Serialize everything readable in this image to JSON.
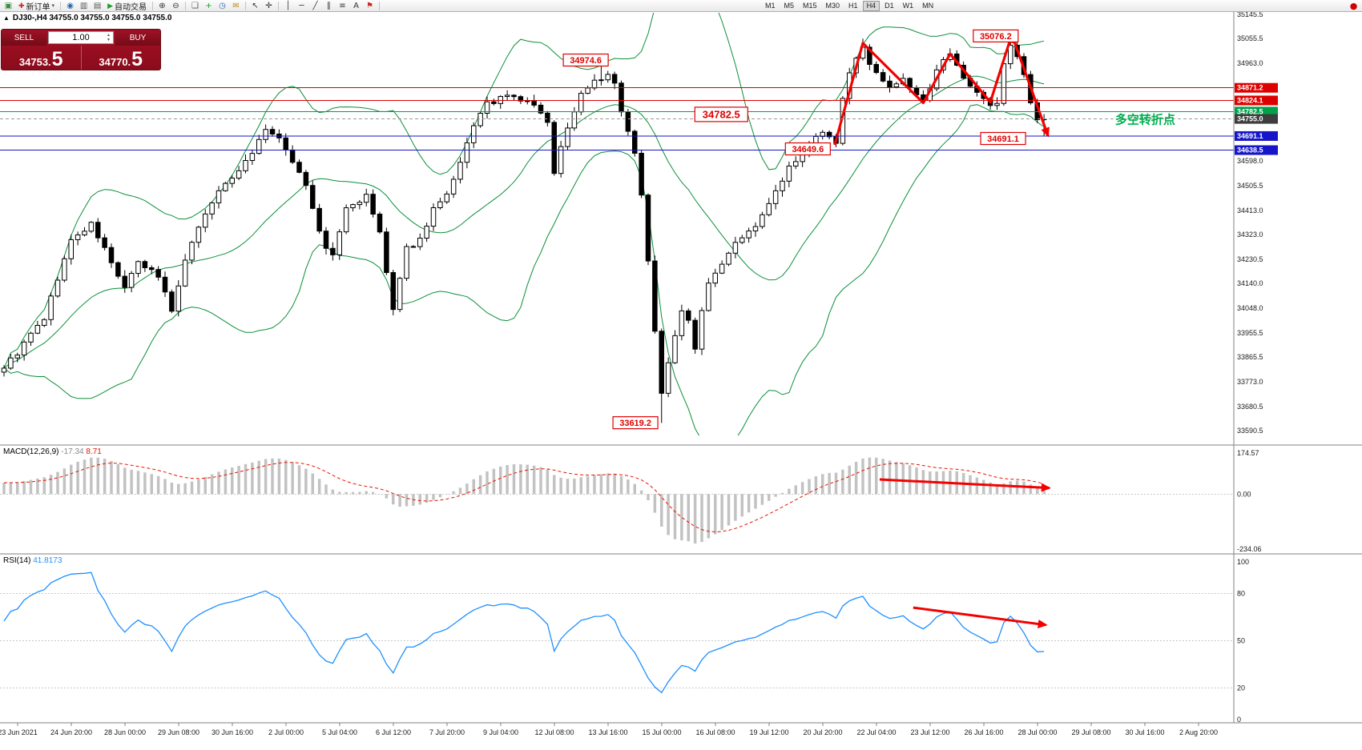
{
  "toolbar": {
    "items": [
      {
        "t": "icon",
        "name": "terminal-icon",
        "g": "▣",
        "c": "#3d8b40"
      },
      {
        "t": "btn",
        "name": "new-order-button",
        "g": "✚",
        "gc": "#cc2222",
        "label": "新订单",
        "caret": true
      },
      {
        "t": "sep"
      },
      {
        "t": "icon",
        "name": "compass-icon",
        "g": "◉",
        "c": "#2b6cb0"
      },
      {
        "t": "icon",
        "name": "bar-chart-icon",
        "g": "▥",
        "c": "#555555"
      },
      {
        "t": "icon",
        "name": "candlestick-chart-icon",
        "g": "▤",
        "c": "#555555"
      },
      {
        "t": "btn",
        "name": "autotrading-button",
        "g": "▶",
        "gc": "#18a32a",
        "label": "自动交易",
        "caret": false
      },
      {
        "t": "sep"
      },
      {
        "t": "icon",
        "name": "zoom-in-icon",
        "g": "⊕",
        "c": "#333333"
      },
      {
        "t": "icon",
        "name": "zoom-out-icon",
        "g": "⊖",
        "c": "#333333"
      },
      {
        "t": "sep"
      },
      {
        "t": "icon",
        "name": "tile-windows-icon",
        "g": "❏",
        "c": "#555555"
      },
      {
        "t": "icon",
        "name": "new-chart-icon",
        "g": "+",
        "c": "#18a32a"
      },
      {
        "t": "icon",
        "name": "clock-icon",
        "g": "◷",
        "c": "#2b6cb0"
      },
      {
        "t": "icon",
        "name": "mail-icon",
        "g": "✉",
        "c": "#b8901a"
      },
      {
        "t": "sep"
      },
      {
        "t": "icon",
        "name": "cursor-icon",
        "g": "↖",
        "c": "#333333"
      },
      {
        "t": "icon",
        "name": "crosshair-icon",
        "g": "✛",
        "c": "#333333"
      },
      {
        "t": "sep"
      },
      {
        "t": "icon",
        "name": "vertical-line-icon",
        "g": "│",
        "c": "#333333"
      },
      {
        "t": "icon",
        "name": "horizontal-line-icon",
        "g": "─",
        "c": "#333333"
      },
      {
        "t": "icon",
        "name": "trendline-icon",
        "g": "╱",
        "c": "#333333"
      },
      {
        "t": "icon",
        "name": "channel-icon",
        "g": "∥",
        "c": "#333333"
      },
      {
        "t": "icon",
        "name": "fibonacci-icon",
        "g": "≡",
        "c": "#333333"
      },
      {
        "t": "icon",
        "name": "text-tool-icon",
        "g": "A",
        "c": "#333333"
      },
      {
        "t": "icon",
        "name": "shapes-icon",
        "g": "⚑",
        "c": "#cc2222"
      },
      {
        "t": "sep"
      }
    ],
    "timeframes": [
      "M1",
      "M5",
      "M15",
      "M30",
      "H1",
      "H4",
      "D1",
      "W1",
      "MN"
    ],
    "active_timeframe": "H4",
    "record_icon": {
      "name": "record-icon",
      "g": "●",
      "c": "#d40000"
    }
  },
  "trade_panel": {
    "sell_label": "SELL",
    "buy_label": "BUY",
    "volume": "1.00",
    "sell_price_main": "34753.",
    "sell_price_big": "5",
    "buy_price_main": "34770.",
    "buy_price_big": "5"
  },
  "chart_data": {
    "type": "candlestick",
    "symbol": "DJ30-",
    "timeframe": "H4",
    "header_line": "DJ30-,H4  34755.0 34755.0 34755.0 34755.0",
    "bars": 156,
    "price_axis": {
      "max": 35145.5,
      "min": 33590.5,
      "plain_labels": [
        35145.5,
        35055.5,
        34963.0,
        34598.0,
        34505.5,
        34413.0,
        34323.0,
        34230.5,
        34140.0,
        34048.0,
        33955.5,
        33865.5,
        33773.0,
        33680.5,
        33590.5
      ],
      "highlight_labels": [
        {
          "value": "34871.2",
          "price": 34871.2,
          "color": "#dd0000"
        },
        {
          "value": "34824.1",
          "price": 34824.1,
          "color": "#dd0000"
        },
        {
          "value": "34782.5",
          "price": 34782.5,
          "color": "#00a14b"
        },
        {
          "value": "34755.0",
          "price": 34755.0,
          "color": "#3d3d3d"
        },
        {
          "value": "34691.1",
          "price": 34691.1,
          "color": "#1616c8"
        },
        {
          "value": "34638.5",
          "price": 34638.5,
          "color": "#1616c8"
        }
      ]
    },
    "hlines": [
      {
        "name": "hline-34871",
        "price": 34871.2,
        "color": "#dd0000"
      },
      {
        "name": "hline-34824",
        "price": 34824.1,
        "color": "#dd0000"
      },
      {
        "name": "hline-34782",
        "price": 34782.5,
        "color": "#00a14b"
      },
      {
        "name": "hline-34691",
        "price": 34691.1,
        "color": "#1616c8"
      },
      {
        "name": "hline-34638",
        "price": 34638.5,
        "color": "#1616c8"
      },
      {
        "name": "bid-price-line",
        "price": 34755.0,
        "color": "#9a9a9a",
        "dash": "4 3"
      }
    ],
    "price_path": [
      [
        0,
        33830
      ],
      [
        2,
        33880
      ],
      [
        4,
        33950
      ],
      [
        6,
        34010
      ],
      [
        8,
        34160
      ],
      [
        10,
        34300
      ],
      [
        13,
        34360
      ],
      [
        15,
        34270
      ],
      [
        16,
        34215
      ],
      [
        18,
        34125
      ],
      [
        20,
        34215
      ],
      [
        22,
        34185
      ],
      [
        23,
        34170
      ],
      [
        25,
        34040
      ],
      [
        26,
        34140
      ],
      [
        28,
        34300
      ],
      [
        31,
        34450
      ],
      [
        34,
        34540
      ],
      [
        37,
        34630
      ],
      [
        39,
        34720
      ],
      [
        41,
        34675
      ],
      [
        43,
        34600
      ],
      [
        45,
        34510
      ],
      [
        47,
        34330
      ],
      [
        48,
        34270
      ],
      [
        49,
        34245
      ],
      [
        51,
        34420
      ],
      [
        53,
        34450
      ],
      [
        54,
        34465
      ],
      [
        56,
        34330
      ],
      [
        57,
        34180
      ],
      [
        58,
        34040
      ],
      [
        59,
        34150
      ],
      [
        60,
        34270
      ],
      [
        62,
        34305
      ],
      [
        64,
        34420
      ],
      [
        66,
        34465
      ],
      [
        68,
        34585
      ],
      [
        70,
        34735
      ],
      [
        72,
        34810
      ],
      [
        75,
        34840
      ],
      [
        77,
        34825
      ],
      [
        79,
        34810
      ],
      [
        81,
        34735
      ],
      [
        82,
        34560
      ],
      [
        83,
        34650
      ],
      [
        84,
        34720
      ],
      [
        86,
        34850
      ],
      [
        88,
        34900
      ],
      [
        90,
        34915
      ],
      [
        91,
        34885
      ],
      [
        92,
        34780
      ],
      [
        93,
        34700
      ],
      [
        94,
        34620
      ],
      [
        95,
        34480
      ],
      [
        96,
        34230
      ],
      [
        97,
        33960
      ],
      [
        98,
        33730
      ],
      [
        99,
        33850
      ],
      [
        100,
        33950
      ],
      [
        101,
        34030
      ],
      [
        102,
        34000
      ],
      [
        103,
        33905
      ],
      [
        104,
        34040
      ],
      [
        105,
        34150
      ],
      [
        107,
        34220
      ],
      [
        109,
        34300
      ],
      [
        111,
        34330
      ],
      [
        113,
        34390
      ],
      [
        115,
        34480
      ],
      [
        117,
        34570
      ],
      [
        119,
        34620
      ],
      [
        121,
        34690
      ],
      [
        122,
        34710
      ],
      [
        123,
        34680
      ],
      [
        124,
        34655
      ],
      [
        125,
        34840
      ],
      [
        126,
        34930
      ],
      [
        127,
        34985
      ],
      [
        128,
        35015
      ],
      [
        129,
        34960
      ],
      [
        130,
        34930
      ],
      [
        131,
        34890
      ],
      [
        132,
        34870
      ],
      [
        134,
        34900
      ],
      [
        135,
        34880
      ],
      [
        136,
        34855
      ],
      [
        137,
        34815
      ],
      [
        138,
        34860
      ],
      [
        139,
        34930
      ],
      [
        140,
        34970
      ],
      [
        141,
        34990
      ],
      [
        142,
        34950
      ],
      [
        143,
        34900
      ],
      [
        144,
        34880
      ],
      [
        145,
        34855
      ],
      [
        146,
        34825
      ],
      [
        147,
        34812
      ],
      [
        148,
        34815
      ],
      [
        149,
        34960
      ],
      [
        150,
        35030
      ],
      [
        151,
        34980
      ],
      [
        152,
        34930
      ],
      [
        153,
        34815
      ],
      [
        154,
        34760
      ],
      [
        155,
        34755
      ]
    ],
    "pins": {
      "89": {
        "high": 34974.6
      },
      "98": {
        "close": 33730,
        "low": 33619.2
      },
      "124": {
        "low": 34649.6
      },
      "128": {
        "high": 35055.0
      },
      "150": {
        "high": 35076.2
      },
      "155": {
        "close": 34755.0,
        "low": 34691.1
      }
    },
    "noise": {
      "seed": 9,
      "close_amp": 10,
      "wick_amp": 20
    },
    "bollinger": {
      "period": 20,
      "deviation": 2,
      "color": "#0b8f3a"
    },
    "annotations": [
      {
        "text": "34974.6",
        "bar": 86.7,
        "price": 34975,
        "big": false
      },
      {
        "text": "35076.2",
        "bar": 147.8,
        "price": 35065,
        "big": false
      },
      {
        "text": "34782.5",
        "bar": 106.9,
        "price": 34772,
        "big": true
      },
      {
        "text": "34649.6",
        "bar": 119.8,
        "price": 34643,
        "big": false
      },
      {
        "text": "34691.1",
        "bar": 148.9,
        "price": 34682,
        "big": false
      },
      {
        "text": "33619.2",
        "bar": 94.1,
        "price": 33620,
        "big": false
      }
    ],
    "note": {
      "text": "多空转折点",
      "bar": 165.6,
      "price": 34737,
      "color": "#00b050"
    },
    "zigzag": {
      "color": "#f50000",
      "segments": [
        [
          [
            123.8,
            34658
          ],
          [
            128,
            35038
          ],
          [
            137,
            34815
          ],
          [
            141,
            34998
          ],
          [
            147,
            34818
          ],
          [
            150.2,
            35070
          ]
        ],
        [
          [
            150.2,
            35070
          ],
          [
            155.6,
            34692
          ]
        ]
      ]
    },
    "time_labels": [
      "23 Jun 2021",
      "24 Jun 20:00",
      "28 Jun 00:00",
      "29 Jun 08:00",
      "30 Jun 16:00",
      "2 Jul 00:00",
      "5 Jul 04:00",
      "6 Jul 12:00",
      "7 Jul 20:00",
      "9 Jul 04:00",
      "12 Jul 08:00",
      "13 Jul 16:00",
      "15 Jul 00:00",
      "16 Jul 08:00",
      "19 Jul 12:00",
      "20 Jul 20:00",
      "22 Jul 04:00",
      "23 Jul 12:00",
      "26 Jul 16:00",
      "28 Jul 00:00",
      "29 Jul 08:00",
      "30 Jul 16:00",
      "2 Aug 20:00"
    ],
    "macd": {
      "label": "MACD(12,26,9)",
      "value_main": "-17.34",
      "value_signal": "8.71",
      "fast": 12,
      "slow": 26,
      "signal": 9,
      "axis_labels": [
        "174.57",
        "0.00",
        "-234.06"
      ],
      "axis_values": [
        174.57,
        0,
        -234.06
      ],
      "hist_color": "#c2c2c2",
      "signal_color": "#e51400",
      "arrow": [
        [
          130.5,
          62
        ],
        [
          155.8,
          26
        ]
      ]
    },
    "rsi": {
      "label": "RSI(14)",
      "value": "41.8173",
      "period": 14,
      "axis_labels": [
        "100",
        "80",
        "50",
        "20",
        "0"
      ],
      "axis_values": [
        100,
        80,
        50,
        20,
        0
      ],
      "levels": [
        80,
        50,
        20
      ],
      "color": "#1e90ff",
      "arrow": [
        [
          135.5,
          71
        ],
        [
          155.3,
          60
        ]
      ]
    }
  }
}
